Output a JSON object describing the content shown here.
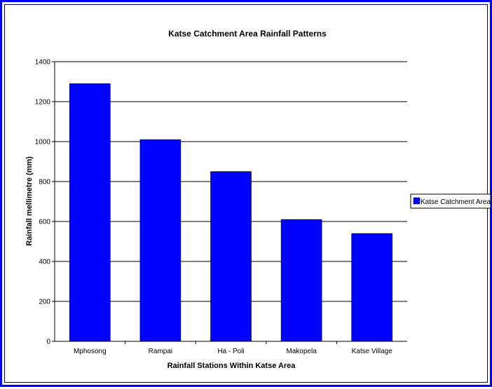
{
  "chart_data": {
    "type": "bar",
    "title": "Katse Catchment Area Rainfall Patterns",
    "xlabel": "Rainfall Stations Within Katse Area",
    "ylabel": "Rainfall mellimetre (mm)",
    "categories": [
      "Mphosong",
      "Rampai",
      "Ha - Poli",
      "Makopela",
      "Katse Village"
    ],
    "series": [
      {
        "name": "Katse Catchment Area",
        "values": [
          1290,
          1010,
          850,
          610,
          540
        ],
        "color": "#0000ff"
      }
    ],
    "ylim": [
      0,
      1400
    ],
    "yticks": [
      "0",
      "200",
      "400",
      "600",
      "800",
      "1000",
      "1200",
      "1400"
    ],
    "grid": true,
    "legend_position": "right"
  }
}
